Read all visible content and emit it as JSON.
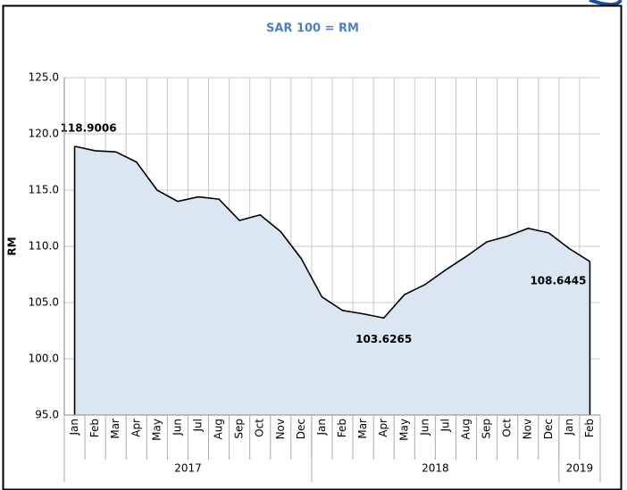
{
  "chart_data": {
    "type": "area",
    "title": "SAR 100 = RM",
    "y_label": "RM",
    "categories": [
      "Jan",
      "Feb",
      "Mar",
      "Apr",
      "May",
      "Jun",
      "Jul",
      "Aug",
      "Sep",
      "Oct",
      "Nov",
      "Dec",
      "Jan",
      "Feb",
      "Mar",
      "Apr",
      "May",
      "Jun",
      "Jul",
      "Aug",
      "Sep",
      "Oct",
      "Nov",
      "Dec",
      "Jan",
      "Feb"
    ],
    "year_groups": [
      {
        "label": "2017",
        "count": 12
      },
      {
        "label": "2018",
        "count": 12
      },
      {
        "label": "2019",
        "count": 2
      }
    ],
    "series": [
      {
        "name": "SAR 100 = RM",
        "color": "#dce6f2",
        "line_color": "#000000",
        "values": [
          118.9006,
          118.5,
          118.4,
          117.5,
          115.0,
          114.0,
          114.4,
          114.2,
          112.3,
          112.8,
          111.3,
          108.9,
          105.5,
          104.3,
          104.0,
          103.6265,
          105.7,
          106.6,
          107.9,
          109.1,
          110.4,
          110.9,
          111.6,
          111.2,
          109.8,
          108.6445
        ]
      }
    ],
    "data_labels": [
      0,
      15,
      25
    ],
    "ylim": [
      95,
      125
    ],
    "yticks": [
      {
        "value": 95,
        "label": "95.0"
      },
      {
        "value": 100,
        "label": "100.0"
      },
      {
        "value": 105,
        "label": "105.0"
      },
      {
        "value": 110,
        "label": "110.0"
      },
      {
        "value": 115,
        "label": "115.0"
      },
      {
        "value": 120,
        "label": "120.0"
      },
      {
        "value": 125,
        "label": "125.0"
      }
    ],
    "grid": true
  }
}
